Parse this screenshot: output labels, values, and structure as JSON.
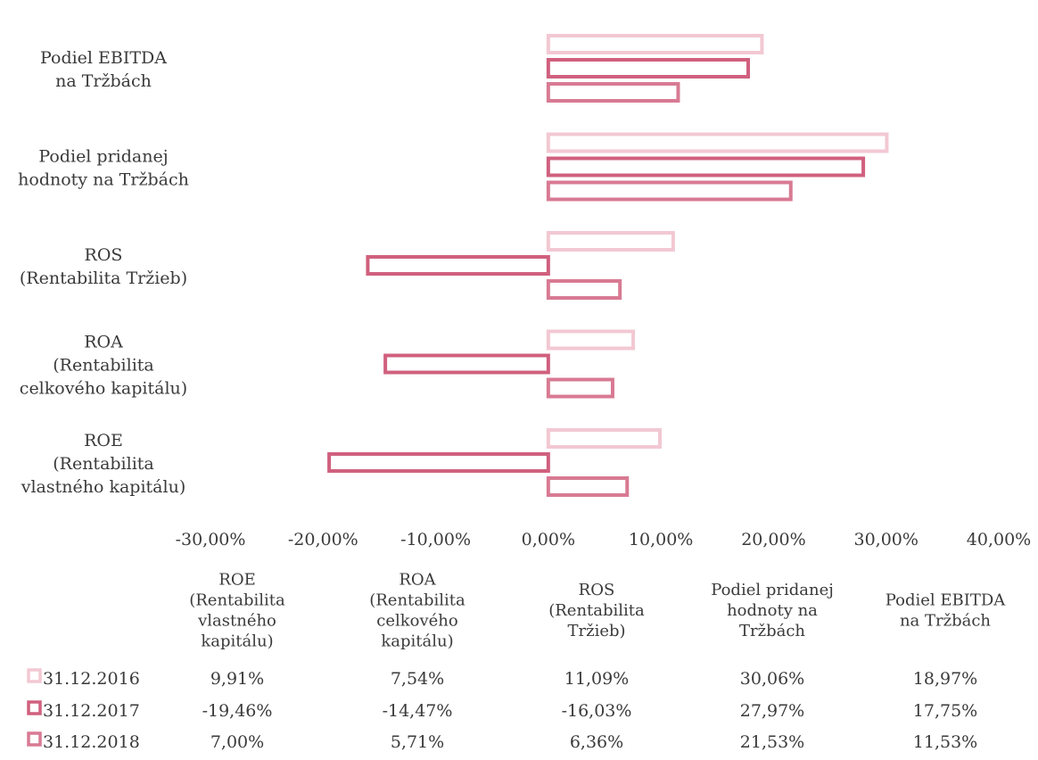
{
  "chart_data": {
    "type": "bar",
    "orientation": "horizontal",
    "categories": [
      "Podiel EBITDA na Tržbách",
      "Podiel pridanej hodnoty na Tržbách",
      "ROS (Rentabilita Tržieb)",
      "ROA (Rentabilita celkového kapitálu)",
      "ROE (Rentabilita vlastného kapitálu)"
    ],
    "category_lines": [
      [
        "Podiel EBITDA",
        "na Tržbách"
      ],
      [
        "Podiel pridanej",
        "hodnoty na Tržbách"
      ],
      [
        "ROS",
        "(Rentabilita Tržieb)"
      ],
      [
        "ROA",
        "(Rentabilita",
        "celkového kapitálu)"
      ],
      [
        "ROE",
        "(Rentabilita",
        "vlastného kapitálu)"
      ]
    ],
    "series": [
      {
        "name": "31.12.2016",
        "color": "#f2c8d3",
        "values": [
          18.97,
          30.06,
          11.09,
          7.54,
          9.91
        ]
      },
      {
        "name": "31.12.2017",
        "color": "#d0607e",
        "values": [
          17.75,
          27.97,
          -16.03,
          -14.47,
          -19.46
        ]
      },
      {
        "name": "31.12.2018",
        "color": "#d87a93",
        "values": [
          11.53,
          21.53,
          6.36,
          5.71,
          7.0
        ]
      }
    ],
    "xlim": [
      -30,
      40
    ],
    "x_ticks": [
      "-30,00%",
      "-20,00%",
      "-10,00%",
      "0,00%",
      "10,00%",
      "20,00%",
      "30,00%",
      "40,00%"
    ],
    "grid": false,
    "legend_placement": "data-table-below",
    "data_table": {
      "headers": [
        [
          "ROE",
          "(Rentabilita",
          "vlastného",
          "kapitálu)"
        ],
        [
          "ROA",
          "(Rentabilita",
          "celkového",
          "kapitálu)"
        ],
        [
          "ROS",
          "(Rentabilita",
          "Tržieb)"
        ],
        [
          "Podiel pridanej",
          "hodnoty na",
          "Tržbách"
        ],
        [
          "Podiel EBITDA",
          "na Tržbách"
        ]
      ],
      "rows": [
        {
          "label": "31.12.2016",
          "cells": [
            "9,91%",
            "7,54%",
            "11,09%",
            "30,06%",
            "18,97%"
          ]
        },
        {
          "label": "31.12.2017",
          "cells": [
            "-19,46%",
            "-14,47%",
            "-16,03%",
            "27,97%",
            "17,75%"
          ]
        },
        {
          "label": "31.12.2018",
          "cells": [
            "7,00%",
            "5,71%",
            "6,36%",
            "21,53%",
            "11,53%"
          ]
        }
      ]
    }
  }
}
